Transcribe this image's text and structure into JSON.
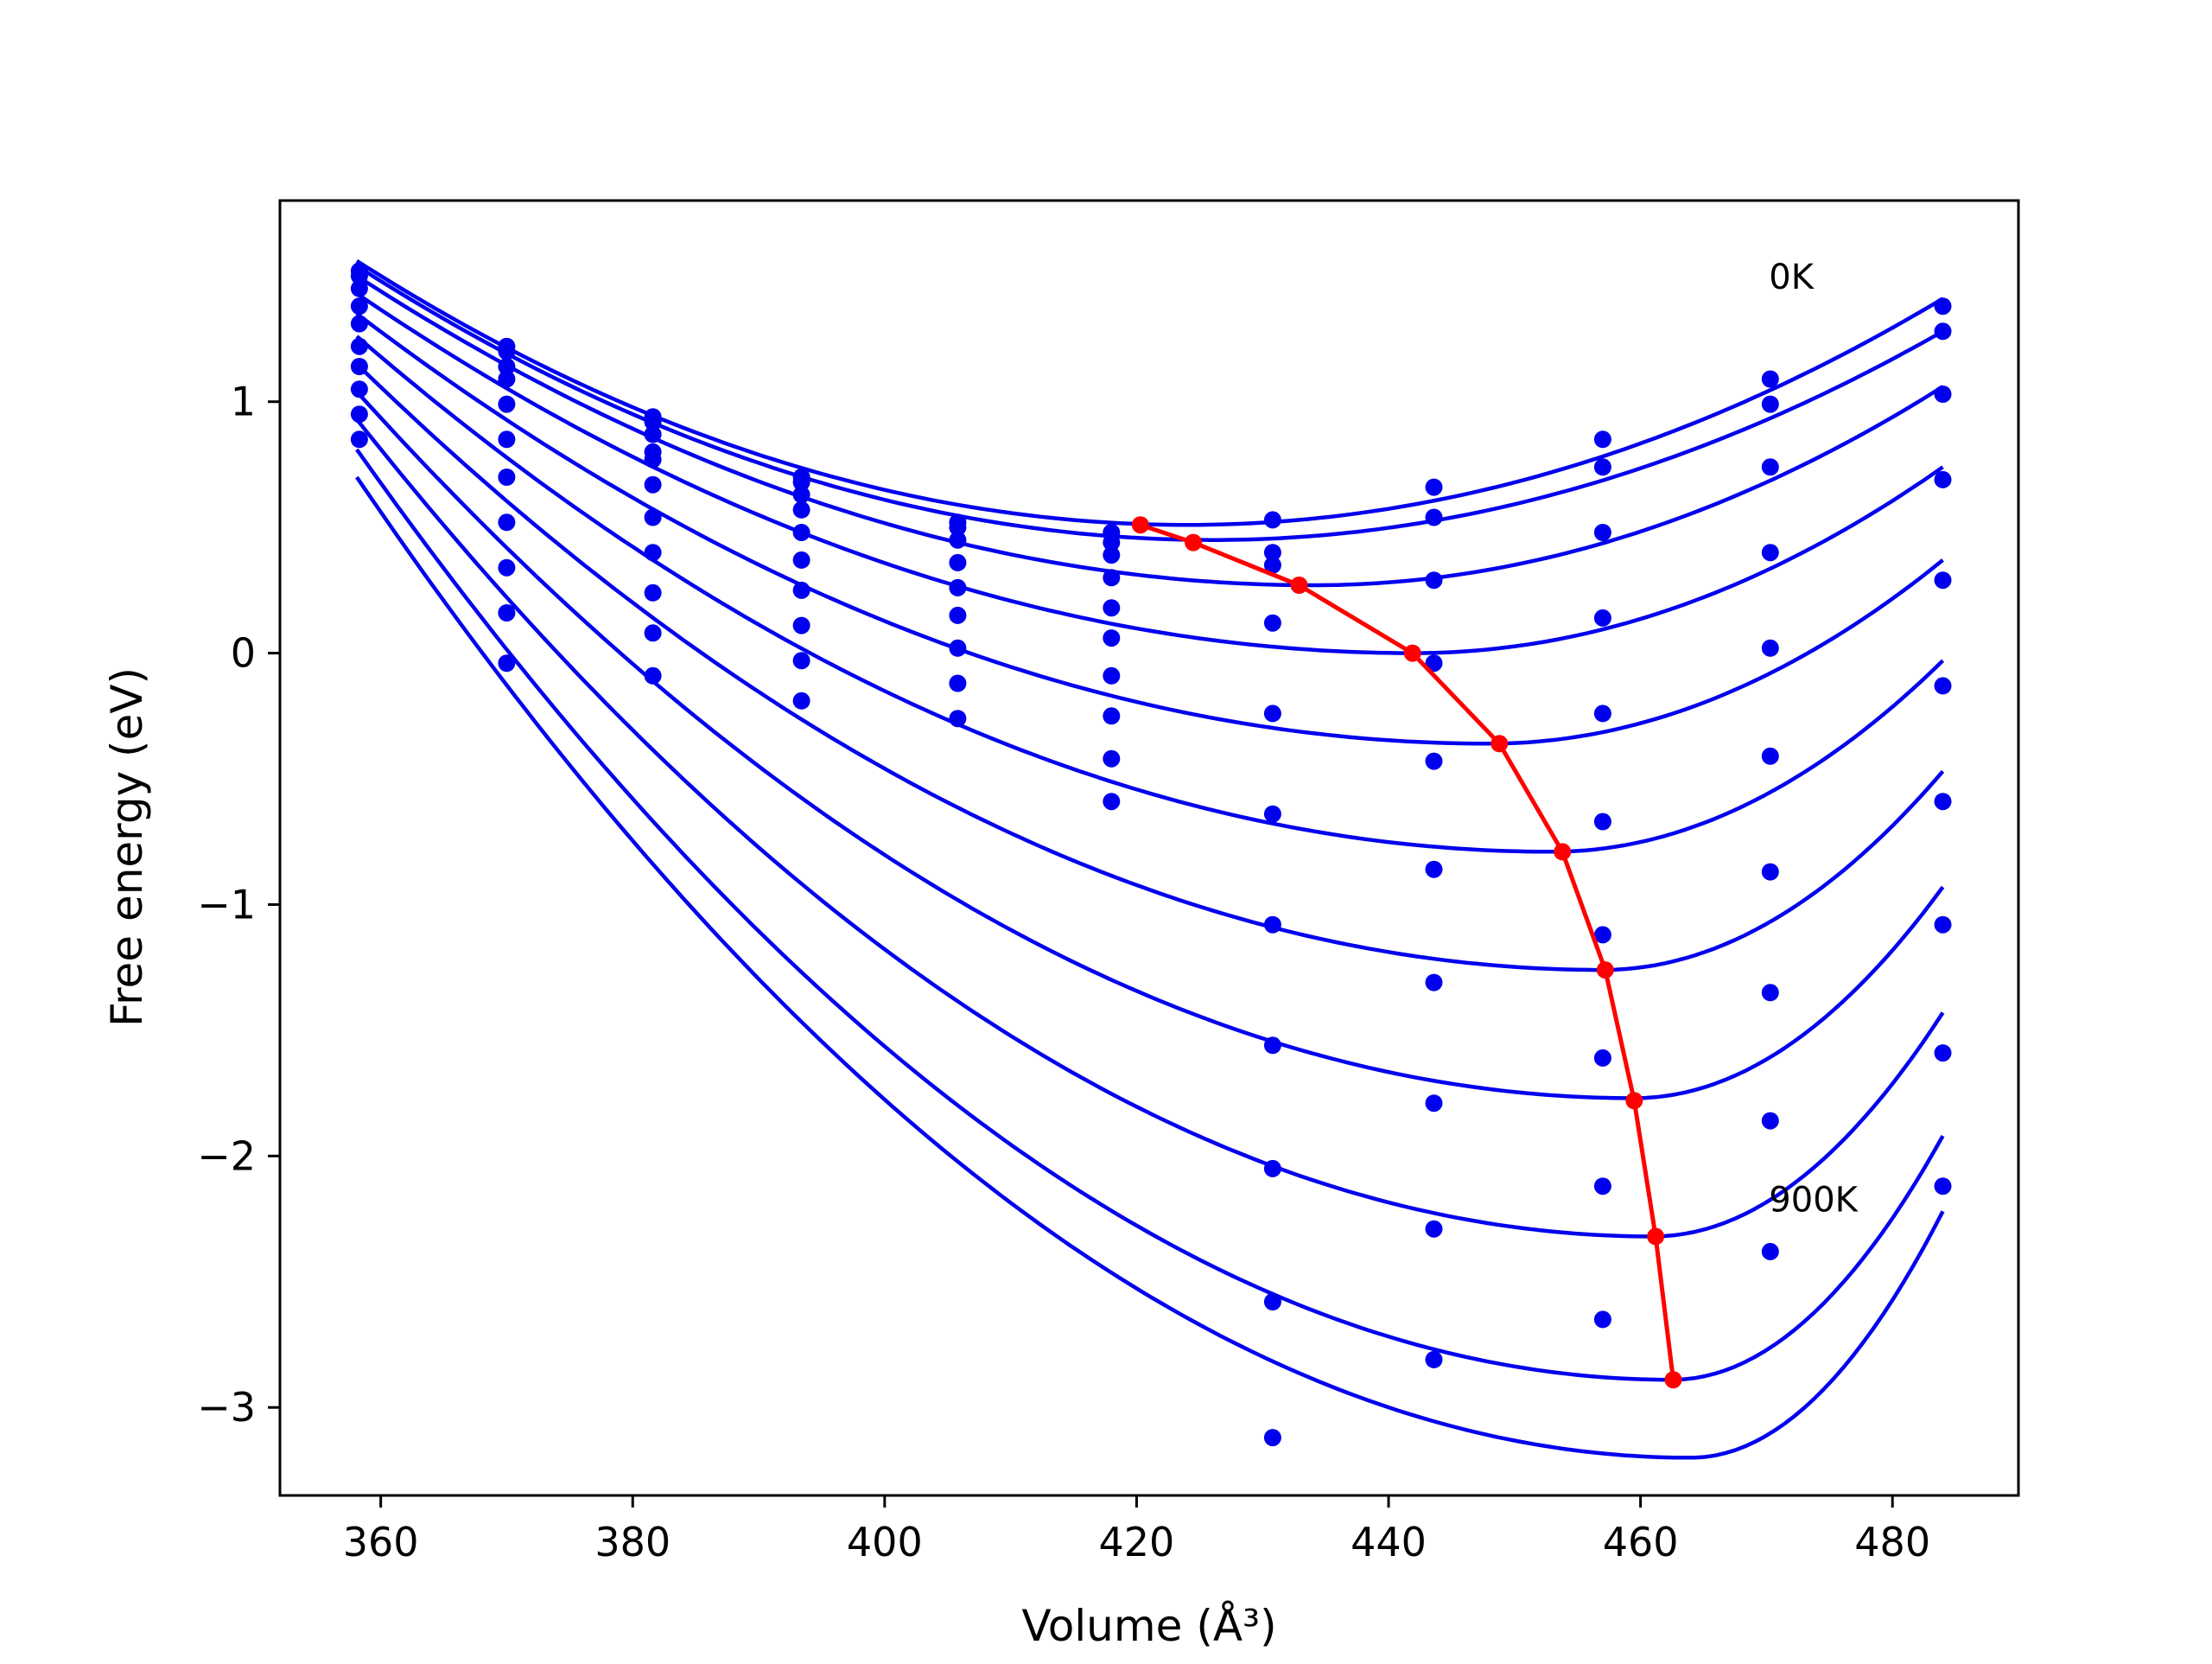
{
  "chart_data": {
    "type": "line",
    "title": "",
    "xlabel": "Volume",
    "xlabel_unit": "(Å³)",
    "ylabel": "Free energy (eV)",
    "xlim": [
      352,
      490
    ],
    "ylim": [
      -3.35,
      1.8
    ],
    "grid": false,
    "legend": "none",
    "xticks": [
      360,
      380,
      400,
      420,
      440,
      460,
      480
    ],
    "yticks": [
      1,
      0,
      -1,
      -2,
      -3
    ],
    "ytick_labels": [
      "1",
      "0",
      "−1",
      "−2",
      "−3"
    ],
    "annotations": [
      {
        "text": "0K",
        "x": 470.2,
        "y": 1.45
      },
      {
        "text": "900K",
        "x": 470.2,
        "y": -2.22
      }
    ],
    "colors": {
      "fits": "#0000ee",
      "points": "#0000ee",
      "minima": "#ff0000",
      "axes": "#000000"
    },
    "x_samples": [
      358.3,
      370.0,
      381.6,
      393.4,
      405.8,
      418.0,
      430.8,
      443.6,
      457.0,
      470.3,
      484.0
    ],
    "series": [
      {
        "name": "",
        "values": [
          1.52,
          1.22,
          0.94,
          0.7,
          0.52,
          0.48,
          0.53,
          0.66,
          0.85,
          1.09,
          1.38
        ]
      },
      {
        "name": "",
        "values": [
          1.5,
          1.2,
          0.92,
          0.68,
          0.5,
          0.44,
          0.4,
          0.54,
          0.74,
          0.99,
          1.28
        ]
      },
      {
        "name": "",
        "values": [
          1.45,
          1.14,
          0.87,
          0.63,
          0.45,
          0.39,
          0.35,
          0.29,
          0.48,
          0.74,
          1.03
        ]
      },
      {
        "name": "",
        "values": [
          1.38,
          1.09,
          0.8,
          0.57,
          0.36,
          0.3,
          0.12,
          -0.04,
          0.14,
          0.4,
          0.69
        ]
      },
      {
        "name": "",
        "values": [
          1.31,
          0.99,
          0.77,
          0.48,
          0.26,
          0.18,
          -0.24,
          -0.43,
          -0.24,
          0.02,
          0.29
        ]
      },
      {
        "name": "",
        "values": [
          1.22,
          0.85,
          0.67,
          0.37,
          0.15,
          0.06,
          -0.64,
          -0.86,
          -0.67,
          -0.41,
          -0.13
        ]
      },
      {
        "name": "",
        "values": [
          1.14,
          0.7,
          0.54,
          0.25,
          0.02,
          -0.09,
          -1.08,
          -1.31,
          -1.12,
          -0.87,
          -0.59
        ]
      },
      {
        "name": "",
        "values": [
          1.05,
          0.52,
          0.4,
          0.11,
          -0.12,
          -0.25,
          -1.56,
          -1.79,
          -1.61,
          -1.35,
          -1.08
        ]
      },
      {
        "name": "",
        "values": [
          0.95,
          0.34,
          0.24,
          -0.03,
          -0.26,
          -0.42,
          -2.05,
          -2.29,
          -2.12,
          -1.86,
          -1.59
        ]
      },
      {
        "name": "",
        "values": [
          0.85,
          0.16,
          0.08,
          -0.19,
          null,
          -0.59,
          -2.58,
          -2.81,
          -2.65,
          -2.38,
          -2.12
        ]
      },
      {
        "name": "",
        "values": [
          null,
          -0.04,
          -0.09,
          null,
          null,
          null,
          -3.12,
          null,
          null,
          null,
          null
        ]
      }
    ],
    "fit_curves": [
      {
        "minimum_x": 424.0,
        "minimum_y": 0.51,
        "at_358": 1.56,
        "at_484": 1.41
      },
      {
        "minimum_x": 426.0,
        "minimum_y": 0.45,
        "at_358": 1.54,
        "at_484": 1.28
      },
      {
        "minimum_x": 434.0,
        "minimum_y": 0.27,
        "at_358": 1.5,
        "at_484": 1.06
      },
      {
        "minimum_x": 442.0,
        "minimum_y": 0.0,
        "at_358": 1.43,
        "at_484": 0.74
      },
      {
        "minimum_x": 448.0,
        "minimum_y": -0.36,
        "at_358": 1.35,
        "at_484": 0.37
      },
      {
        "minimum_x": 453.0,
        "minimum_y": -0.79,
        "at_358": 1.26,
        "at_484": -0.03
      },
      {
        "minimum_x": 457.0,
        "minimum_y": -1.26,
        "at_358": 1.15,
        "at_484": -0.47
      },
      {
        "minimum_x": 459.5,
        "minimum_y": -1.77,
        "at_358": 1.04,
        "at_484": -0.93
      },
      {
        "minimum_x": 461.0,
        "minimum_y": -2.32,
        "at_358": 0.93,
        "at_484": -1.43
      },
      {
        "minimum_x": 462.5,
        "minimum_y": -2.89,
        "at_358": 0.81,
        "at_484": -1.92
      },
      {
        "minimum_x": 464.0,
        "minimum_y": -3.2,
        "at_358": 0.7,
        "at_484": -2.22
      }
    ],
    "minima_line": {
      "x": [
        420.3,
        424.5,
        432.9,
        441.9,
        448.8,
        453.8,
        457.2,
        459.5,
        461.2,
        462.6
      ],
      "y": [
        0.51,
        0.44,
        0.27,
        0.0,
        -0.36,
        -0.79,
        -1.26,
        -1.78,
        -2.32,
        -2.89
      ]
    }
  }
}
